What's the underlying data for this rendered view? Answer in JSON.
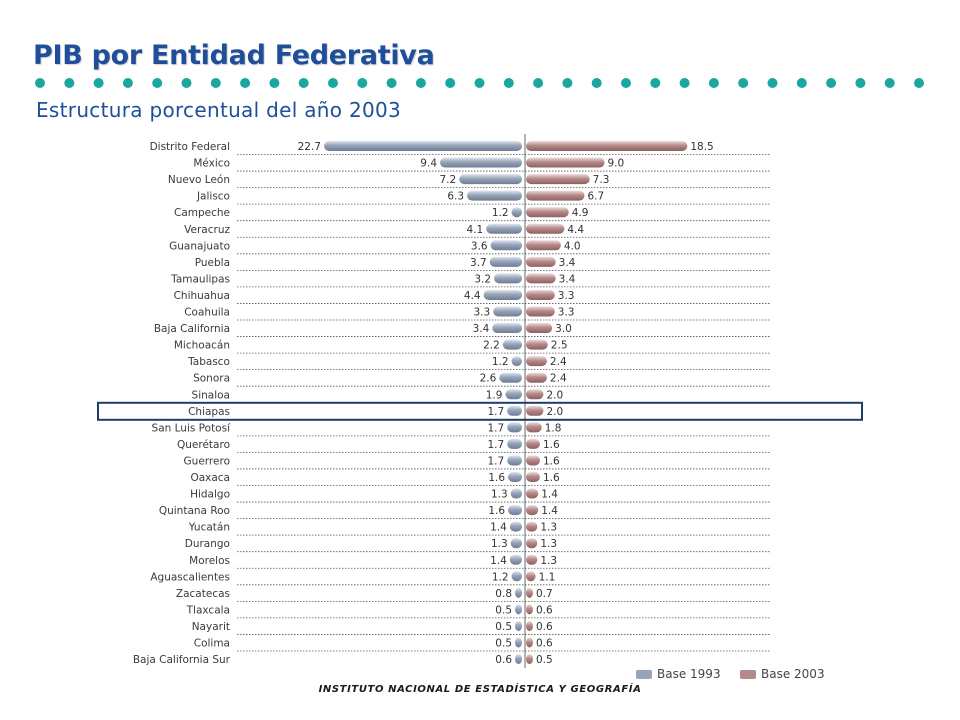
{
  "page": {
    "title": "PIB por Entidad Federativa",
    "subtitle": "Estructura porcentual del año 2003",
    "footer": "INSTITUTO NACIONAL DE ESTADÍSTICA Y GEOGRAFÍA"
  },
  "colors": {
    "title": "#1f4e9a",
    "dots": "#1aa7a0",
    "base1993": "#95a4b8",
    "base2003": "#b58a88",
    "highlight": "#1f3d6b"
  },
  "chart_data": {
    "type": "bar",
    "orientation": "horizontal-diverging",
    "categories": [
      "Distrito Federal",
      "México",
      "Nuevo León",
      "Jalisco",
      "Campeche",
      "Veracruz",
      "Guanajuato",
      "Puebla",
      "Tamaulipas",
      "Chihuahua",
      "Coahuila",
      "Baja California",
      "Michoacán",
      "Tabasco",
      "Sonora",
      "Sinaloa",
      "Chiapas",
      "San Luis Potosí",
      "Querétaro",
      "Guerrero",
      "Oaxaca",
      "Hidalgo",
      "Quintana Roo",
      "Yucatán",
      "Durango",
      "Morelos",
      "Aguascalientes",
      "Zacatecas",
      "Tlaxcala",
      "Nayarit",
      "Colima",
      "Baja California Sur"
    ],
    "series": [
      {
        "name": "Base 1993",
        "values": [
          "22.7",
          "9.4",
          "7.2",
          "6.3",
          "1.2",
          "4.1",
          "3.6",
          "3.7",
          "3.2",
          "4.4",
          "3.3",
          "3.4",
          "2.2",
          "1.2",
          "2.6",
          "1.9",
          "1.7",
          "1.7",
          "1.7",
          "1.7",
          "1.6",
          "1.3",
          "1.6",
          "1.4",
          "1.3",
          "1.4",
          "1.2",
          "0.8",
          "0.5",
          "0.5",
          "0.5",
          "0.6"
        ]
      },
      {
        "name": "Base 2003",
        "values": [
          "18.5",
          "9.0",
          "7.3",
          "6.7",
          "4.9",
          "4.4",
          "4.0",
          "3.4",
          "3.4",
          "3.3",
          "3.3",
          "3.0",
          "2.5",
          "2.4",
          "2.4",
          "2.0",
          "2.0",
          "1.8",
          "1.6",
          "1.6",
          "1.6",
          "1.4",
          "1.4",
          "1.3",
          "1.3",
          "1.3",
          "1.1",
          "0.7",
          "0.6",
          "0.6",
          "0.6",
          "0.5"
        ]
      }
    ],
    "highlighted_category": "Chiapas",
    "legend_position": "bottom-right"
  }
}
